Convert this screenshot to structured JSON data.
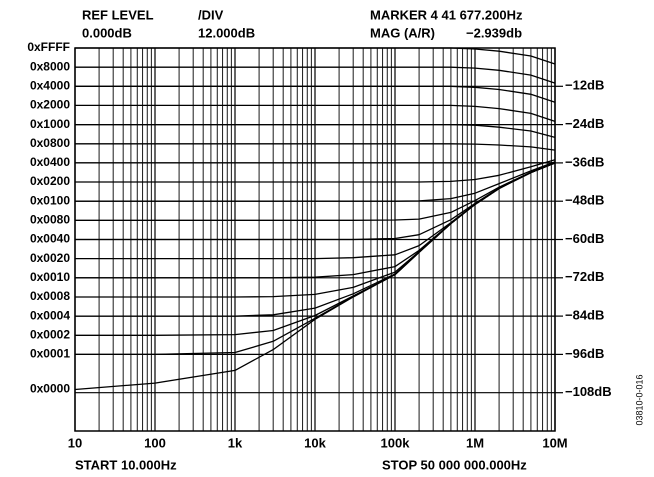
{
  "chart_data": {
    "type": "line",
    "ref_level_label": "REF LEVEL",
    "ref_level_value": "0.000dB",
    "div_label": "/DIV",
    "div_value": "12.000dB",
    "marker_text": "MARKER 4 41 677.200Hz",
    "marker_mag_label": "MAG (A/R)",
    "marker_mag_value": "−2.939db",
    "start_text": "START 10.000Hz",
    "stop_text": "STOP 50 000 000.000Hz",
    "figure_id": "03810-0-016",
    "log_x": true,
    "grid": true,
    "color": "#000000",
    "xlim": [
      10,
      10000000
    ],
    "xticks": [
      10,
      100,
      {
        "value": 1000,
        "label": "1k"
      },
      {
        "value": 10000,
        "label": "10k"
      },
      {
        "value": 100000,
        "label": "100k"
      },
      {
        "value": 1000000,
        "label": "1M"
      },
      {
        "value": 10000000,
        "label": "10M"
      }
    ],
    "ylim": [
      -120,
      0
    ],
    "yticks": [
      {
        "value": -12,
        "label": "−12dB"
      },
      {
        "value": -24,
        "label": "−24dB"
      },
      {
        "value": -36,
        "label": "−36dB"
      },
      {
        "value": -48,
        "label": "−48dB"
      },
      {
        "value": -60,
        "label": "−60dB"
      },
      {
        "value": -72,
        "label": "−72dB"
      },
      {
        "value": -84,
        "label": "−84dB"
      },
      {
        "value": -96,
        "label": "−96dB"
      },
      {
        "value": -108,
        "label": "−108dB"
      }
    ],
    "x": [
      10,
      100,
      1000,
      3000,
      10000,
      30000,
      100000,
      200000,
      500000,
      1000000,
      2000000,
      5000000,
      10000000
    ],
    "series": [
      {
        "name": "0xFFFF",
        "values": [
          0,
          0,
          0,
          0,
          0,
          0,
          0,
          0,
          0,
          -0.3,
          -1,
          -2.5,
          -5
        ]
      },
      {
        "name": "0x8000",
        "values": [
          -6,
          -6,
          -6,
          -6,
          -6,
          -6,
          -6,
          -6,
          -6,
          -6.3,
          -7,
          -8.5,
          -11
        ]
      },
      {
        "name": "0x4000",
        "values": [
          -12,
          -12,
          -12,
          -12,
          -12,
          -12,
          -12,
          -12,
          -12,
          -12.3,
          -13,
          -14.5,
          -17
        ]
      },
      {
        "name": "0x2000",
        "values": [
          -18,
          -18,
          -18,
          -18,
          -18,
          -18,
          -18,
          -18,
          -18,
          -18.3,
          -19,
          -20.5,
          -23
        ]
      },
      {
        "name": "0x1000",
        "values": [
          -24,
          -24,
          -24,
          -24,
          -24,
          -24,
          -24,
          -24,
          -24,
          -24.2,
          -24.8,
          -26,
          -28
        ]
      },
      {
        "name": "0x0800",
        "values": [
          -30,
          -30,
          -30,
          -30,
          -30,
          -30,
          -30,
          -30,
          -30,
          -30.1,
          -30.4,
          -31,
          -32
        ]
      },
      {
        "name": "0x0400",
        "values": [
          -36,
          -36,
          -36,
          -36,
          -36,
          -36,
          -36,
          -36,
          -36,
          -36,
          -36,
          -36,
          -36
        ]
      },
      {
        "name": "0x0200",
        "values": [
          -42,
          -42,
          -42,
          -42,
          -42,
          -42,
          -42,
          -42,
          -41.8,
          -41.2,
          -39.9,
          -37.2,
          -35
        ]
      },
      {
        "name": "0x0100",
        "values": [
          -48,
          -48,
          -48,
          -48,
          -48,
          -48,
          -48,
          -47.9,
          -47.2,
          -45.5,
          -42.5,
          -38.5,
          -35.7
        ]
      },
      {
        "name": "0x0080",
        "values": [
          -54,
          -54,
          -54,
          -54,
          -54,
          -54,
          -53.9,
          -53.6,
          -51.5,
          -47.8,
          -43.6,
          -38.9,
          -35.9
        ]
      },
      {
        "name": "0x0040",
        "values": [
          -60,
          -60,
          -60,
          -60,
          -60,
          -60,
          -59.7,
          -58.5,
          -53.8,
          -48.7,
          -43.9,
          -39,
          -36
        ]
      },
      {
        "name": "0x0020",
        "values": [
          -66,
          -66,
          -66,
          -66,
          -66,
          -65.7,
          -64.8,
          -61.9,
          -54.7,
          -48.9,
          -44,
          -39,
          -36
        ]
      },
      {
        "name": "0x0010",
        "values": [
          -72,
          -72,
          -72,
          -72,
          -71.8,
          -71,
          -68.5,
          -63.4,
          -54.9,
          -49,
          -44,
          -39,
          -36
        ]
      },
      {
        "name": "0x0008",
        "values": [
          -78,
          -78,
          -78,
          -77.9,
          -77.2,
          -75,
          -70.2,
          -63.8,
          -55,
          -49,
          -44,
          -39,
          -36
        ]
      },
      {
        "name": "0x0004",
        "values": [
          -84,
          -84,
          -84,
          -83.6,
          -81.5,
          -77,
          -70.8,
          -63.9,
          -55,
          -49,
          -44,
          -39,
          -36
        ]
      },
      {
        "name": "0x0002",
        "values": [
          -90,
          -90,
          -89.8,
          -88.5,
          -83.8,
          -77.7,
          -71,
          -64,
          -55,
          -49,
          -44,
          -39,
          -36
        ]
      },
      {
        "name": "0x0001",
        "values": [
          -96,
          -96,
          -95.4,
          -91.9,
          -84.7,
          -77.9,
          -71,
          -64,
          -55,
          -49,
          -44,
          -39,
          -36
        ]
      },
      {
        "name": "0x0000",
        "values": [
          -107,
          -105,
          -101,
          -94.5,
          -85,
          -78,
          -71,
          -64,
          -55,
          -49,
          -44,
          -39,
          -36
        ]
      }
    ]
  }
}
